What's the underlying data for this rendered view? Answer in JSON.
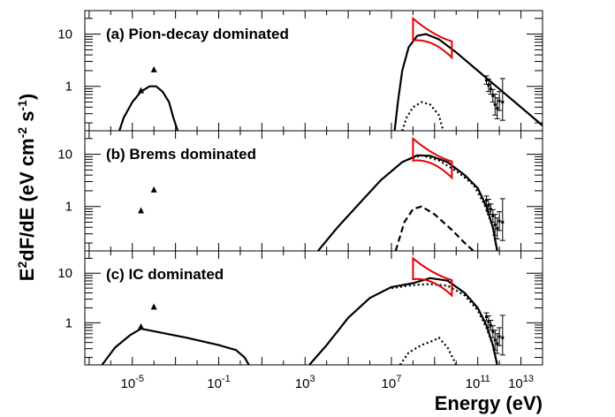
{
  "chart_data": {
    "type": "line",
    "xlabel": "Energy (eV)",
    "ylabel": "E2dF/dE (eV cm-2 s-1)",
    "ylabel_parts": {
      "E": "E",
      "sup2": "2",
      "mid": "dF/dE (eV cm",
      "sup_m2": "-2",
      "s": " s",
      "sup_m1": "-1",
      "close": ")"
    },
    "xscale": "log",
    "yscale": "log",
    "xlim_log10": [
      -7.2,
      14.0
    ],
    "x_ticks": [
      {
        "base": "10",
        "exp": "-5",
        "log10": -5
      },
      {
        "base": "10",
        "exp": "-1",
        "log10": -1
      },
      {
        "base": "10",
        "exp": "3",
        "log10": 3
      },
      {
        "base": "10",
        "exp": "7",
        "log10": 7
      },
      {
        "base": "10",
        "exp": "11",
        "log10": 11
      },
      {
        "base": "10",
        "exp": "13",
        "log10": 13
      }
    ],
    "panels": [
      {
        "title": "(a) Pion-decay dominated",
        "ylim_log10": [
          -0.85,
          1.45
        ],
        "y_ticks": [
          {
            "label": "10",
            "log10": 1
          },
          {
            "label": "1",
            "log10": 0
          }
        ],
        "radio_points": [
          {
            "log10E": -4.6,
            "log10F": -0.08
          },
          {
            "log10E": -4.0,
            "log10F": 0.32
          }
        ],
        "series": [
          {
            "name": "synchrotron",
            "style": "solid",
            "points": [
              [
                -5.6,
                -0.85
              ],
              [
                -5.4,
                -0.6
              ],
              [
                -5.0,
                -0.3
              ],
              [
                -4.6,
                -0.1
              ],
              [
                -4.2,
                0.0
              ],
              [
                -3.9,
                0.0
              ],
              [
                -3.6,
                -0.1
              ],
              [
                -3.3,
                -0.3
              ],
              [
                -3.1,
                -0.6
              ],
              [
                -2.9,
                -0.85
              ]
            ]
          },
          {
            "name": "pion-decay",
            "style": "solid",
            "points": [
              [
                7.15,
                -0.85
              ],
              [
                7.3,
                -0.3
              ],
              [
                7.5,
                0.3
              ],
              [
                7.8,
                0.75
              ],
              [
                8.2,
                0.97
              ],
              [
                8.6,
                1.0
              ],
              [
                9.2,
                0.9
              ],
              [
                10.0,
                0.65
              ],
              [
                11.0,
                0.3
              ],
              [
                12.0,
                -0.05
              ],
              [
                13.0,
                -0.4
              ],
              [
                14.0,
                -0.75
              ]
            ]
          },
          {
            "name": "inverse-compton",
            "style": "dotted",
            "points": [
              [
                7.5,
                -0.85
              ],
              [
                7.7,
                -0.6
              ],
              [
                8.0,
                -0.4
              ],
              [
                8.4,
                -0.3
              ],
              [
                8.8,
                -0.35
              ],
              [
                9.2,
                -0.55
              ],
              [
                9.4,
                -0.85
              ]
            ]
          }
        ]
      },
      {
        "title": "(b) Brems dominated",
        "ylim_log10": [
          -0.85,
          1.45
        ],
        "y_ticks": [
          {
            "label": "10",
            "log10": 1
          },
          {
            "label": "1",
            "log10": 0
          }
        ],
        "radio_points": [
          {
            "log10E": -4.6,
            "log10F": -0.08
          },
          {
            "log10E": -4.0,
            "log10F": 0.32
          }
        ],
        "series": [
          {
            "name": "bremsstrahlung",
            "style": "solid",
            "points": [
              [
                3.6,
                -0.85
              ],
              [
                4.5,
                -0.4
              ],
              [
                5.5,
                0.05
              ],
              [
                6.5,
                0.5
              ],
              [
                7.5,
                0.85
              ],
              [
                8.2,
                0.98
              ],
              [
                8.8,
                0.97
              ],
              [
                9.6,
                0.85
              ],
              [
                10.4,
                0.6
              ],
              [
                11.0,
                0.35
              ],
              [
                11.4,
                0.0
              ],
              [
                11.7,
                -0.4
              ],
              [
                11.9,
                -0.85
              ]
            ]
          },
          {
            "name": "pion-decay-dotted",
            "style": "dotted",
            "points": [
              [
                7.8,
                0.9
              ],
              [
                8.4,
                0.98
              ],
              [
                9.2,
                0.88
              ],
              [
                10.0,
                0.68
              ],
              [
                10.8,
                0.42
              ],
              [
                11.3,
                0.05
              ],
              [
                11.7,
                -0.4
              ],
              [
                11.9,
                -0.85
              ]
            ]
          },
          {
            "name": "inverse-compton",
            "style": "dashed",
            "points": [
              [
                7.2,
                -0.85
              ],
              [
                7.6,
                -0.3
              ],
              [
                8.0,
                -0.05
              ],
              [
                8.4,
                0.0
              ],
              [
                9.0,
                -0.15
              ],
              [
                9.8,
                -0.45
              ],
              [
                10.4,
                -0.7
              ],
              [
                10.8,
                -0.85
              ]
            ]
          }
        ]
      },
      {
        "title": "(c) IC dominated",
        "ylim_log10": [
          -0.85,
          1.45
        ],
        "y_ticks": [
          {
            "label": "10",
            "log10": 1
          },
          {
            "label": "1",
            "log10": 0
          }
        ],
        "radio_points": [
          {
            "log10E": -4.6,
            "log10F": -0.08
          },
          {
            "log10E": -4.0,
            "log10F": 0.32
          }
        ],
        "series": [
          {
            "name": "synchrotron",
            "style": "solid",
            "points": [
              [
                -6.4,
                -0.85
              ],
              [
                -5.8,
                -0.5
              ],
              [
                -5.1,
                -0.25
              ],
              [
                -4.6,
                -0.12
              ],
              [
                -4.0,
                -0.17
              ],
              [
                -2.5,
                -0.3
              ],
              [
                -1.0,
                -0.45
              ],
              [
                -0.2,
                -0.55
              ],
              [
                0.2,
                -0.7
              ],
              [
                0.4,
                -0.85
              ]
            ]
          },
          {
            "name": "inverse-compton",
            "style": "solid",
            "points": [
              [
                3.2,
                -0.85
              ],
              [
                4.0,
                -0.45
              ],
              [
                5.0,
                0.1
              ],
              [
                6.0,
                0.5
              ],
              [
                7.0,
                0.72
              ],
              [
                8.0,
                0.8
              ],
              [
                8.8,
                0.9
              ],
              [
                9.6,
                0.85
              ],
              [
                10.4,
                0.6
              ],
              [
                11.0,
                0.3
              ],
              [
                11.4,
                -0.05
              ],
              [
                11.7,
                -0.45
              ],
              [
                11.9,
                -0.85
              ]
            ]
          },
          {
            "name": "ic-dotted",
            "style": "dotted",
            "points": [
              [
                7.0,
                0.7
              ],
              [
                8.0,
                0.76
              ],
              [
                8.8,
                0.78
              ],
              [
                9.6,
                0.75
              ],
              [
                10.4,
                0.55
              ],
              [
                11.0,
                0.25
              ],
              [
                11.4,
                -0.1
              ],
              [
                11.7,
                -0.45
              ],
              [
                11.9,
                -0.85
              ]
            ]
          },
          {
            "name": "pion-decay",
            "style": "dotted",
            "points": [
              [
                7.4,
                -0.85
              ],
              [
                7.8,
                -0.6
              ],
              [
                8.4,
                -0.45
              ],
              [
                9.0,
                -0.35
              ],
              [
                9.2,
                -0.3
              ],
              [
                9.6,
                -0.5
              ],
              [
                10.0,
                -0.85
              ]
            ]
          }
        ]
      }
    ],
    "fermi_bowtie": {
      "color": "#e60000",
      "log10E": [
        8.0,
        9.8
      ]
    },
    "tev_points": [
      {
        "log10E": 11.4,
        "log10F": 0.12,
        "err": [
          0.08,
          0.08
        ]
      },
      {
        "log10E": 11.5,
        "log10F": 0.02,
        "err": [
          0.12,
          0.12
        ]
      },
      {
        "log10E": 11.6,
        "log10F": -0.05,
        "err": [
          0.1,
          0.1
        ]
      },
      {
        "log10E": 11.7,
        "log10F": -0.18,
        "err": [
          0.12,
          0.12
        ]
      },
      {
        "log10E": 11.8,
        "log10F": -0.35,
        "err": [
          0.2,
          0.2
        ]
      },
      {
        "log10E": 11.9,
        "log10F": -0.42,
        "err": [
          0.2,
          0.2
        ]
      },
      {
        "log10E": 12.0,
        "log10F": -0.28,
        "err": [
          0.18,
          0.18
        ]
      },
      {
        "log10E": 12.15,
        "log10F": -0.3,
        "err": [
          0.45,
          0.35
        ]
      }
    ]
  }
}
